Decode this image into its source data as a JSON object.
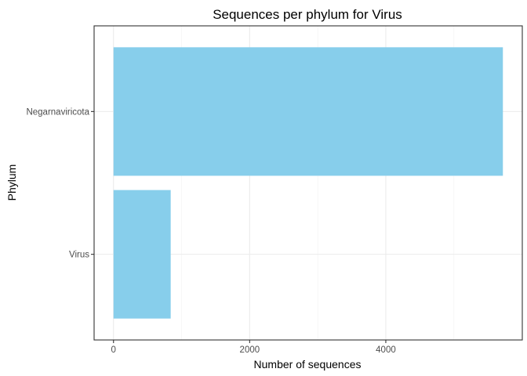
{
  "chart_data": {
    "type": "bar",
    "orientation": "horizontal",
    "title": "Sequences per phylum for Virus",
    "xlabel": "Number of sequences",
    "ylabel": "Phylum",
    "categories": [
      "Virus",
      "Negarnaviricota"
    ],
    "values": [
      840,
      5720
    ],
    "xlim": [
      -285,
      6005
    ],
    "xticks": [
      0,
      2000,
      4000
    ],
    "bar_color": "#87CEEB",
    "grid": true,
    "legend": "none"
  }
}
